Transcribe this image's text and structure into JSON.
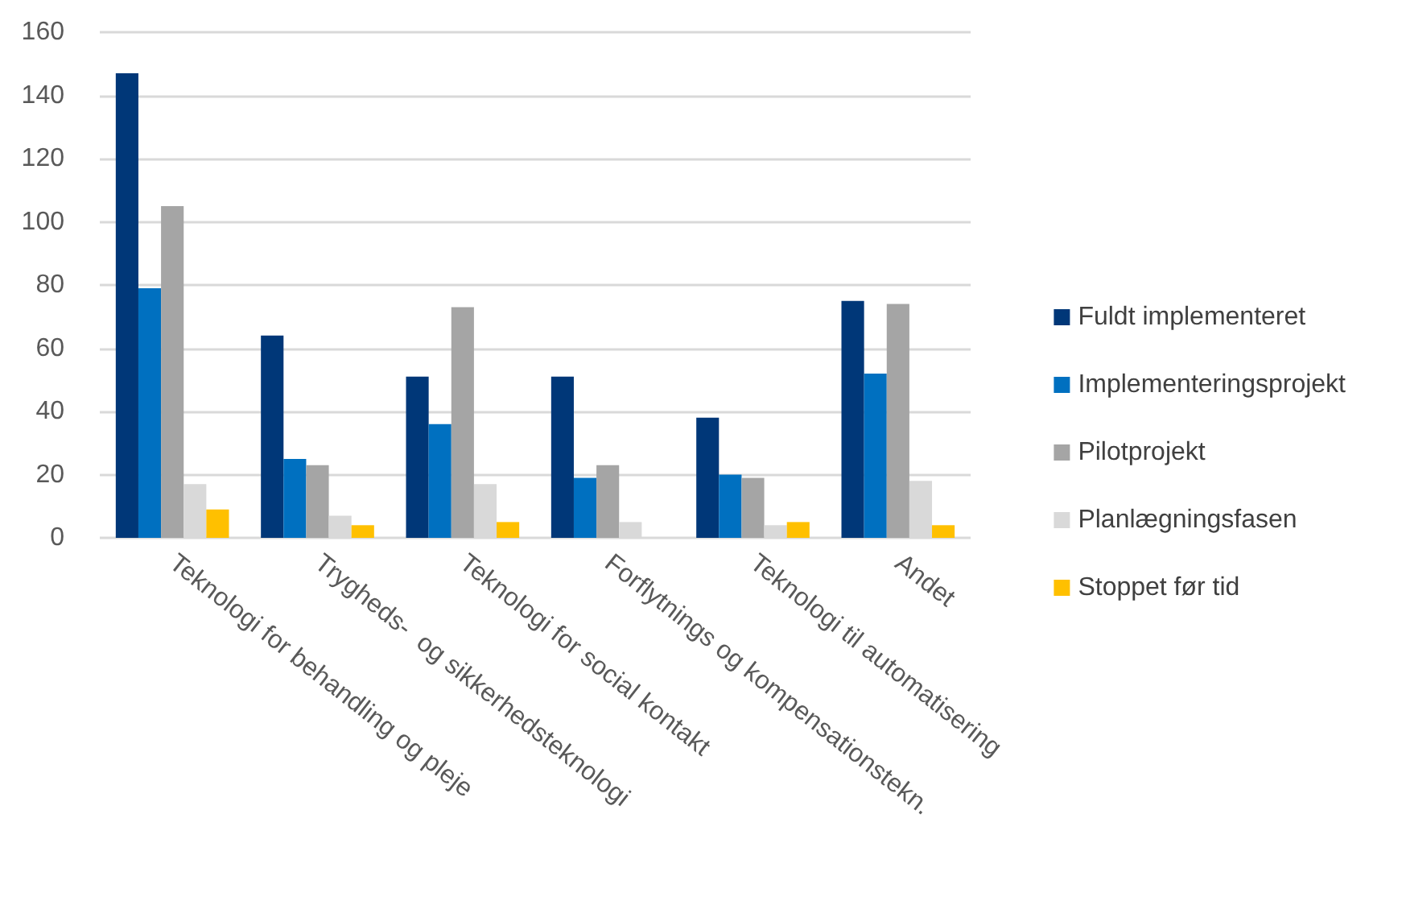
{
  "chart_data": {
    "type": "bar",
    "categories": [
      "Teknologi for behandling og pleje",
      "Trygheds-  og sikkerhedsteknologi",
      "Teknologi for social kontakt",
      "Forflytnings og kompensationstekn.",
      "Teknologi til automatisering",
      "Andet"
    ],
    "series": [
      {
        "name": "Fuldt implementeret",
        "color": "#003778",
        "values": [
          147,
          64,
          51,
          51,
          38,
          75
        ]
      },
      {
        "name": "Implementeringsprojekt",
        "color": "#0070c0",
        "values": [
          79,
          25,
          36,
          19,
          20,
          52
        ]
      },
      {
        "name": "Pilotprojekt",
        "color": "#a5a5a5",
        "values": [
          105,
          23,
          73,
          23,
          19,
          74
        ]
      },
      {
        "name": "Planlægningsfasen",
        "color": "#d9d9d9",
        "values": [
          17,
          7,
          17,
          5,
          4,
          18
        ]
      },
      {
        "name": "Stoppet før tid",
        "color": "#ffc000",
        "values": [
          9,
          4,
          5,
          0,
          5,
          4
        ]
      }
    ],
    "ylim": [
      0,
      160
    ],
    "yticks": [
      0,
      20,
      40,
      60,
      80,
      100,
      120,
      140,
      160
    ],
    "grid": true,
    "legend": "right"
  }
}
